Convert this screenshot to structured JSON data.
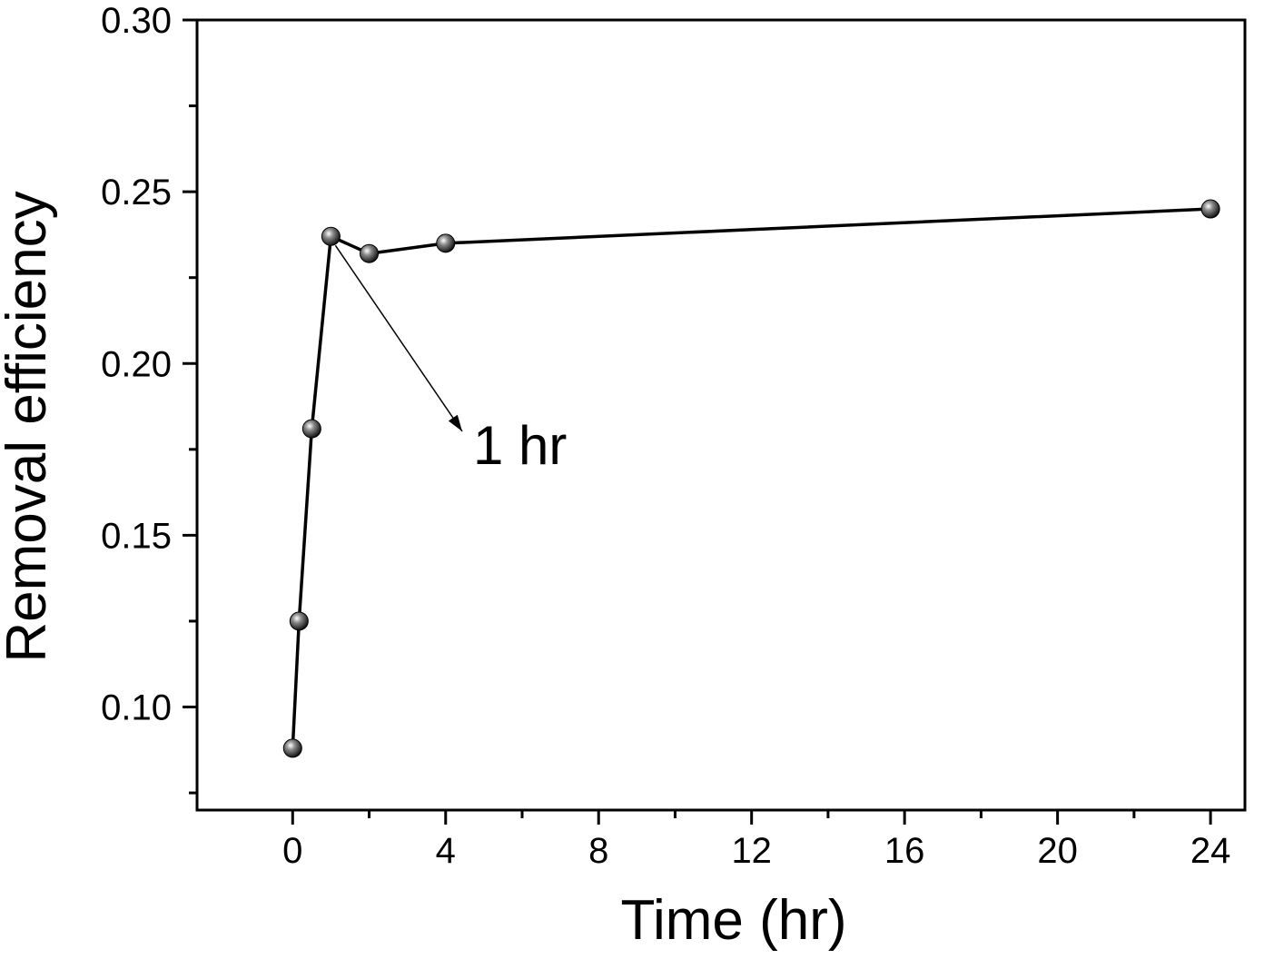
{
  "chart_data": {
    "type": "line",
    "title": "",
    "xlabel": "Time (hr)",
    "ylabel": "Removal efficiency",
    "xlim": [
      -2.5,
      24.9
    ],
    "ylim": [
      0.07,
      0.3
    ],
    "xticks": [
      0,
      4,
      8,
      12,
      16,
      20,
      24
    ],
    "xtick_labels": [
      "0",
      "4",
      "8",
      "12",
      "16",
      "20",
      "24"
    ],
    "yticks": [
      0.1,
      0.15,
      0.2,
      0.25,
      0.3
    ],
    "ytick_labels": [
      "0.10",
      "0.15",
      "0.20",
      "0.25",
      "0.30"
    ],
    "grid": false,
    "series": [
      {
        "x": [
          0,
          0.167,
          0.5,
          1,
          2,
          4,
          24
        ],
        "y": [
          0.088,
          0.125,
          0.181,
          0.237,
          0.232,
          0.235,
          0.245
        ],
        "marker": "sphere",
        "color": "#000000"
      }
    ],
    "annotations": [
      {
        "text": "1 hr",
        "x": 1,
        "y": 0.237
      }
    ]
  }
}
